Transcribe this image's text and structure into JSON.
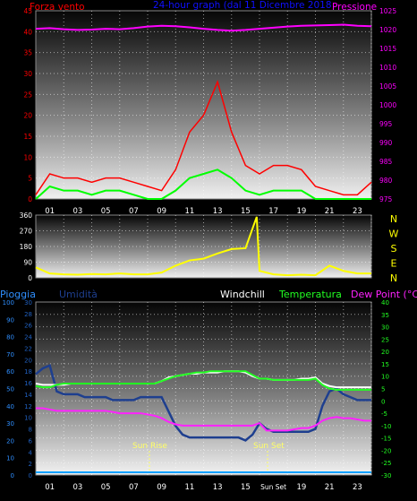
{
  "colors": {
    "wind": "#ff0000",
    "gust": "#00ff00",
    "pressure": "#ff00ff",
    "direction": "#ffff00",
    "humidity": "#1e3f8f",
    "windchill": "#ffffff",
    "temperature": "#22ff22",
    "dewpoint": "#ff22ff",
    "rain": "#00a0ff",
    "title": "#1010ff",
    "text_gray": "#ffffff",
    "axis_left2": "#2060c0",
    "dir_label": "#ffff00"
  },
  "chart_data": [
    {
      "type": "line",
      "title": "24-hour graph (dal 11 Dicembre 2018",
      "ylabel_left": "Forza vento",
      "ylabel_right": "Pressione",
      "y_ticks": [
        "45",
        "40",
        "35",
        "30",
        "25",
        "20",
        "15",
        "10",
        "5",
        "0"
      ],
      "y2_ticks": [
        "1025",
        "1020",
        "1015",
        "1010",
        "1005",
        "1000",
        "995",
        "990",
        "985",
        "980",
        "975"
      ],
      "x_ticks": [
        "01",
        "03",
        "05",
        "07",
        "09",
        "11",
        "13",
        "15",
        "17",
        "19",
        "21",
        "23"
      ],
      "ylim": [
        0,
        45
      ],
      "y2lim": [
        975,
        1025
      ],
      "x": [
        0,
        1,
        2,
        3,
        4,
        5,
        6,
        7,
        8,
        9,
        10,
        11,
        12,
        13,
        14,
        15,
        16,
        17,
        18,
        19,
        20,
        21,
        22,
        23,
        24
      ],
      "series": [
        {
          "key": "wind",
          "values": [
            1,
            6,
            5,
            5,
            4,
            5,
            5,
            4,
            3,
            2,
            7,
            16,
            20,
            28,
            16,
            8,
            6,
            8,
            8,
            7,
            3,
            2,
            1,
            1,
            4
          ]
        },
        {
          "key": "gust",
          "values": [
            0,
            3,
            2,
            2,
            1,
            2,
            2,
            1,
            0,
            0,
            2,
            5,
            6,
            7,
            5,
            2,
            1,
            2,
            2,
            2,
            0,
            0,
            0,
            0,
            0
          ]
        },
        {
          "key": "pressure",
          "values": [
            1020.2,
            1020.4,
            1020.1,
            1019.9,
            1020,
            1020.2,
            1020.1,
            1020.4,
            1020.8,
            1021,
            1020.9,
            1020.6,
            1020.2,
            1019.9,
            1019.7,
            1019.9,
            1020.2,
            1020.5,
            1020.8,
            1021,
            1021.1,
            1021.2,
            1021.3,
            1021,
            1020.9
          ]
        }
      ]
    },
    {
      "type": "line",
      "y_ticks": [
        "360",
        "270",
        "180",
        "90",
        "0"
      ],
      "ylim": [
        0,
        360
      ],
      "direction_labels": [
        "N",
        "W",
        "S",
        "E",
        "N"
      ],
      "x": [
        0,
        1,
        2,
        3,
        4,
        5,
        6,
        7,
        8,
        9,
        10,
        11,
        12,
        13,
        14,
        15,
        15.8,
        16,
        17,
        18,
        19,
        20,
        21,
        22,
        23,
        24
      ],
      "series": [
        {
          "key": "direction",
          "values": [
            60,
            25,
            20,
            18,
            22,
            20,
            25,
            20,
            20,
            30,
            70,
            100,
            110,
            140,
            165,
            170,
            350,
            40,
            20,
            15,
            18,
            15,
            70,
            40,
            25,
            25
          ]
        }
      ]
    },
    {
      "type": "line",
      "ylabel_left_outer": "Pioggia",
      "ylabel_left_inner": "Umidità",
      "legend": [
        "Windchill",
        "Temperatura",
        "Dew Point (°C)"
      ],
      "y_ticks_outer": [
        "100",
        "90",
        "80",
        "70",
        "60",
        "50",
        "40",
        "30",
        "20",
        "10",
        "0"
      ],
      "y_ticks_inner": [
        "30",
        "28",
        "26",
        "24",
        "22",
        "20",
        "18",
        "16",
        "14",
        "12",
        "10",
        "8",
        "6",
        "4",
        "2",
        "0"
      ],
      "y_ticks_right": [
        "40",
        "35",
        "30",
        "25",
        "20",
        "15",
        "10",
        "5",
        "0",
        "-5",
        "-10",
        "-15",
        "-20",
        "-25",
        "-30"
      ],
      "x_ticks": [
        "01",
        "03",
        "05",
        "07",
        "09",
        "11",
        "13",
        "15",
        "Sun Set",
        "19",
        "21",
        "23"
      ],
      "annotations": [
        "Sun Rise",
        "Sun Set"
      ],
      "ylim_inner": [
        0,
        30
      ],
      "ylim_right": [
        -30,
        40
      ],
      "x": [
        0,
        0.5,
        1,
        1.5,
        2,
        2.5,
        3,
        3.5,
        4,
        4.5,
        5,
        5.5,
        6,
        6.5,
        7,
        7.5,
        8,
        8.5,
        9,
        9.5,
        10,
        10.5,
        11,
        11.5,
        12,
        12.5,
        13,
        13.5,
        14,
        14.5,
        15,
        15.5,
        16,
        16.5,
        17,
        17.5,
        18,
        18.5,
        19,
        19.5,
        20,
        20.5,
        21,
        21.5,
        22,
        22.5,
        23,
        23.5,
        24
      ],
      "series": [
        {
          "key": "humidity",
          "values": [
            17.5,
            18.5,
            19,
            14.5,
            14,
            14,
            14,
            13.5,
            13.5,
            13.5,
            13.5,
            13,
            13,
            13,
            13,
            13.5,
            13.5,
            13.5,
            13.5,
            11,
            8.5,
            7,
            6.5,
            6.5,
            6.5,
            6.5,
            6.5,
            6.5,
            6.5,
            6.5,
            6,
            7,
            9,
            8,
            7.5,
            7.5,
            7.5,
            7.5,
            7.5,
            7.5,
            8,
            12,
            14.5,
            15,
            14,
            13.5,
            13,
            13,
            13
          ]
        },
        {
          "key": "windchill",
          "values": [
            7,
            6.5,
            6.5,
            6.5,
            6.5,
            7,
            7,
            7,
            7,
            7,
            7,
            7,
            7,
            7,
            7,
            7,
            7,
            7,
            8,
            9.5,
            10,
            10.5,
            11,
            11,
            11.5,
            11.5,
            11.5,
            12,
            12,
            12,
            11.5,
            10,
            9,
            9,
            8.5,
            8.5,
            8.5,
            8.5,
            9,
            9,
            9.5,
            7,
            6,
            5.5,
            5.5,
            5.5,
            5.5,
            5.5,
            5.5
          ]
        },
        {
          "key": "temperature",
          "values": [
            6,
            5.5,
            5.5,
            6.5,
            7,
            7,
            7,
            7,
            7,
            7,
            7,
            7,
            7,
            7,
            7,
            7,
            7,
            7,
            8,
            9,
            10,
            10.5,
            11,
            11.5,
            11.5,
            12,
            12,
            12,
            12,
            12,
            12,
            10.5,
            9,
            9,
            8.5,
            8.5,
            8.5,
            8.5,
            8.5,
            8.5,
            9,
            6.5,
            5,
            4.5,
            4.5,
            4.5,
            4.5,
            4.5,
            4.5
          ]
        },
        {
          "key": "dewpoint",
          "values": [
            -3,
            -3,
            -3.5,
            -4,
            -4,
            -4,
            -4,
            -4,
            -4,
            -4,
            -4,
            -4.5,
            -5,
            -5,
            -5,
            -5,
            -5.5,
            -6,
            -7,
            -8.5,
            -9.5,
            -10,
            -10,
            -10,
            -10,
            -10,
            -10,
            -10,
            -10,
            -10,
            -10,
            -10,
            -9,
            -12,
            -12,
            -12,
            -12,
            -11.5,
            -11,
            -11,
            -10,
            -8,
            -7,
            -6.5,
            -7,
            -7,
            -7.5,
            -8,
            -8
          ]
        },
        {
          "key": "rain",
          "values": [
            0,
            0,
            0,
            0,
            0,
            0,
            0,
            0,
            0,
            0,
            0,
            0,
            0,
            0,
            0,
            0,
            0,
            0,
            0,
            0,
            0,
            0,
            0,
            0,
            0,
            0,
            0,
            0,
            0,
            0,
            0,
            0,
            0,
            0,
            0,
            0,
            0,
            0,
            0,
            0,
            0,
            0,
            0,
            0,
            0,
            0,
            0,
            0,
            0
          ]
        }
      ]
    }
  ]
}
